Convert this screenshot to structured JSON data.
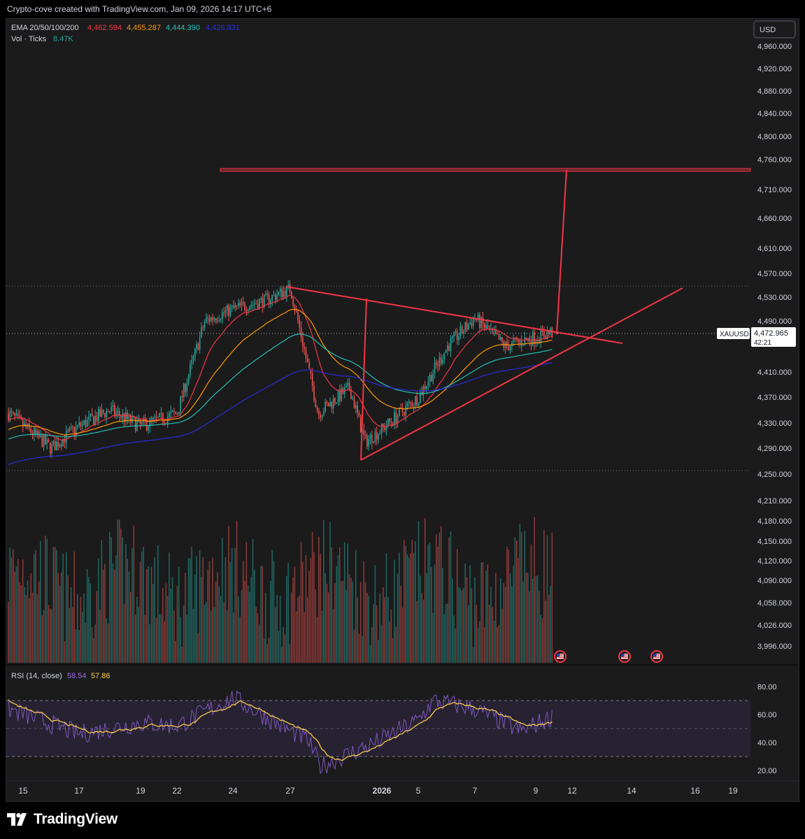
{
  "header": {
    "caption": "Crypto-cove created with TradingView.com, Jan 09, 2026 14:17 UTC+6"
  },
  "legend": {
    "ema_label": "EMA 20/50/100/200",
    "ema_values": [
      {
        "value": "4,462.594",
        "color": "#f23645"
      },
      {
        "value": "4,455.287",
        "color": "#ff9800"
      },
      {
        "value": "4,444.390",
        "color": "#22c1b5"
      },
      {
        "value": "4,426.831",
        "color": "#2b2bdb"
      }
    ],
    "vol_label": "Vol · Ticks",
    "vol_value": "8.47K",
    "vol_color": "#26a69a"
  },
  "currency_button": "USD",
  "symbol_tag": {
    "symbol": "XAUUSD",
    "price": "4,472.965",
    "countdown": "42:21"
  },
  "price_axis_labels": [
    {
      "label": "4,960.000",
      "price": 4960
    },
    {
      "label": "4,920.000",
      "price": 4920
    },
    {
      "label": "4,880.000",
      "price": 4880
    },
    {
      "label": "4,840.000",
      "price": 4840
    },
    {
      "label": "4,800.000",
      "price": 4800
    },
    {
      "label": "4,760.000",
      "price": 4760
    },
    {
      "label": "4,710.000",
      "price": 4710
    },
    {
      "label": "4,660.000",
      "price": 4660
    },
    {
      "label": "4,610.000",
      "price": 4610
    },
    {
      "label": "4,570.000",
      "price": 4570
    },
    {
      "label": "4,530.000",
      "price": 4530
    },
    {
      "label": "4,490.000",
      "price": 4490
    },
    {
      "label": "4,410.000",
      "price": 4410
    },
    {
      "label": "4,370.000",
      "price": 4370
    },
    {
      "label": "4,330.000",
      "price": 4330
    },
    {
      "label": "4,290.000",
      "price": 4290
    },
    {
      "label": "4,250.000",
      "price": 4250
    },
    {
      "label": "4,210.000",
      "price": 4210
    },
    {
      "label": "4,180.000",
      "price": 4180
    },
    {
      "label": "4,150.000",
      "price": 4150
    },
    {
      "label": "4,120.000",
      "price": 4120
    },
    {
      "label": "4,090.000",
      "price": 4090
    },
    {
      "label": "4,058.000",
      "price": 4058
    },
    {
      "label": "4,026.000",
      "price": 4026
    },
    {
      "label": "3,996.000",
      "price": 3996
    }
  ],
  "rsi": {
    "label": "RSI (14, close)",
    "value": "58.54",
    "value_color": "#9c6fe4",
    "ma_value": "57.86",
    "ma_color": "#f7c948",
    "axis_labels": [
      "80.00",
      "60.00",
      "40.00",
      "20.00"
    ],
    "bands": [
      70,
      50,
      30
    ]
  },
  "time_axis": [
    {
      "label": "15",
      "bold": false
    },
    {
      "label": "17",
      "bold": false
    },
    {
      "label": "19",
      "bold": false
    },
    {
      "label": "22",
      "bold": false
    },
    {
      "label": "24",
      "bold": false
    },
    {
      "label": "27",
      "bold": false
    },
    {
      "label": "2026",
      "bold": true
    },
    {
      "label": "5",
      "bold": false
    },
    {
      "label": "7",
      "bold": false
    },
    {
      "label": "9",
      "bold": false
    },
    {
      "label": "12",
      "bold": false
    },
    {
      "label": "14",
      "bold": false
    },
    {
      "label": "16",
      "bold": false
    },
    {
      "label": "19",
      "bold": false
    }
  ],
  "footer": {
    "brand": "TradingView"
  },
  "colors": {
    "up": "#26a69a",
    "down": "#ef5350",
    "drawing": "#f23645",
    "ema20": "#f23645",
    "ema50": "#ff9800",
    "ema100": "#22c1b5",
    "ema200": "#2b2bdb",
    "rsi_line": "#7e57c2",
    "rsi_ma": "#f7c948"
  },
  "chart_data": {
    "type": "line",
    "symbol": "XAUUSD",
    "current_price": 4472.965,
    "price_range": [
      3980,
      4990
    ],
    "date_labels": [
      "15",
      "17",
      "19",
      "22",
      "24",
      "27",
      "2026",
      "5",
      "7",
      "9",
      "12",
      "14",
      "16",
      "19"
    ],
    "close_path": {
      "x": [
        "15",
        "16",
        "17",
        "18",
        "19",
        "22",
        "23",
        "24",
        "26",
        "27",
        "29",
        "30",
        "31",
        "2026",
        "5",
        "6",
        "7",
        "8",
        "9"
      ],
      "y": [
        4345,
        4290,
        4325,
        4350,
        4325,
        4345,
        4490,
        4510,
        4525,
        4545,
        4345,
        4385,
        4300,
        4320,
        4370,
        4450,
        4495,
        4450,
        4473
      ]
    },
    "ema_series": [
      {
        "name": "EMA 20",
        "last": 4462.594
      },
      {
        "name": "EMA 50",
        "last": 4455.287
      },
      {
        "name": "EMA 100",
        "last": 4444.39
      },
      {
        "name": "EMA 200",
        "last": 4426.831
      }
    ],
    "volume_last": "8.47K",
    "rsi_last": 58.54,
    "rsi_ma_last": 57.86,
    "rsi_path": {
      "x": [
        "15",
        "17",
        "19",
        "22",
        "24",
        "27",
        "29",
        "30",
        "2026",
        "5",
        "6",
        "7",
        "8",
        "9"
      ],
      "y": [
        64,
        46,
        54,
        52,
        72,
        48,
        42,
        23,
        42,
        56,
        70,
        64,
        48,
        58.5
      ]
    }
  }
}
